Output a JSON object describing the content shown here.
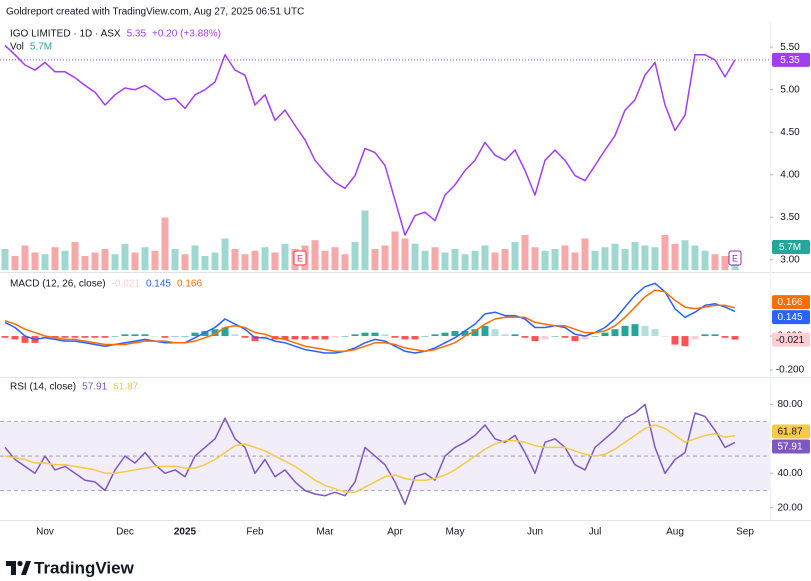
{
  "header": "Goldreport created with TradingView.com, Aug 27, 2025 06:51 UTC",
  "footer": "TradingView",
  "chart_data": [
    {
      "type": "line",
      "title": "IGO LIMITED · 1D · ASX",
      "change": "+0.20 (+3.88%)",
      "ylim": [
        2.88,
        5.76
      ],
      "yticks": [
        {
          "value": 5.5,
          "label": "5.50"
        },
        {
          "value": 5,
          "label": "5.00"
        },
        {
          "value": 4.5,
          "label": "4.50"
        },
        {
          "value": 4,
          "label": "4.00"
        },
        {
          "value": 3.5,
          "label": "3.50"
        },
        {
          "value": 3,
          "label": "3.00"
        }
      ],
      "y2lim": [
        0,
        140
      ],
      "last_line": true,
      "events": [
        {
          "x": 29.5,
          "label": "E",
          "color": "#f23645"
        },
        {
          "x": 73,
          "label": "E",
          "color": "#9c27b0"
        }
      ],
      "series": [
        {
          "type": "line",
          "color": "#a23ef2",
          "values": [
            5.52,
            5.41,
            5.29,
            5.23,
            5.32,
            5.21,
            5.21,
            5.14,
            5.05,
            4.97,
            4.82,
            4.94,
            5.02,
            5.0,
            5.05,
            4.97,
            4.88,
            4.9,
            4.78,
            4.94,
            5.0,
            5.09,
            5.41,
            5.23,
            5.17,
            4.82,
            4.94,
            4.64,
            4.76,
            4.58,
            4.41,
            4.17,
            4.03,
            3.91,
            3.84,
            3.99,
            4.31,
            4.26,
            4.11,
            3.7,
            3.29,
            3.52,
            3.56,
            3.46,
            3.76,
            3.88,
            4.05,
            4.17,
            4.38,
            4.23,
            4.17,
            4.29,
            4.05,
            3.76,
            4.17,
            4.29,
            4.17,
            3.99,
            3.93,
            4.11,
            4.29,
            4.46,
            4.76,
            4.88,
            5.17,
            5.32,
            4.82,
            4.52,
            4.7,
            5.41,
            5.41,
            5.35,
            5.15,
            5.35,
            null
          ]
        },
        {
          "type": "bar",
          "name": "Vol",
          "axis": "y2",
          "color": "#26a69a",
          "up_color": "#9fd8d1",
          "down_color": "#f5a9a9",
          "values": [
            12,
            8,
            14,
            10,
            9,
            13,
            11,
            16,
            8,
            10,
            12,
            9,
            15,
            10,
            13,
            11,
            30,
            12,
            9,
            14,
            8,
            10,
            18,
            12,
            9,
            11,
            13,
            10,
            15,
            12,
            14,
            17,
            11,
            13,
            9,
            16,
            34,
            12,
            14,
            22,
            18,
            15,
            11,
            13,
            10,
            12,
            9,
            11,
            14,
            10,
            12,
            16,
            20,
            13,
            11,
            12,
            14,
            10,
            18,
            11,
            13,
            15,
            12,
            16,
            14,
            13,
            20,
            15,
            17,
            14,
            11,
            9,
            8,
            5.7,
            null
          ],
          "value_labels": [
            null,
            null,
            null,
            null,
            null,
            null,
            null,
            null,
            null,
            null,
            null,
            null,
            null,
            null,
            null,
            null,
            null,
            null,
            null,
            null,
            null,
            null,
            null,
            null,
            null,
            null,
            null,
            null,
            null,
            null,
            null,
            null,
            null,
            null,
            null,
            null,
            null,
            null,
            null,
            null,
            null,
            null,
            null,
            null,
            null,
            null,
            null,
            null,
            null,
            null,
            null,
            null,
            null,
            null,
            null,
            null,
            null,
            null,
            null,
            null,
            null,
            null,
            null,
            null,
            null,
            null,
            null,
            null,
            null,
            null,
            null,
            null,
            null,
            "5.7M",
            null
          ]
        }
      ]
    },
    {
      "type": "line",
      "title": "MACD (12, 26, close)",
      "ylim": [
        -0.235,
        0.359
      ],
      "yticks": [
        {
          "value": 0,
          "label": "0.000"
        },
        {
          "value": -0.2,
          "label": "-0.200"
        }
      ],
      "series": [
        {
          "type": "bar",
          "color": "#ffcdd2",
          "colors": [
            "#26a69a",
            "#b2dfdb",
            "#ffcdd2",
            "#ff5252"
          ],
          "values": [
            -0.01,
            -0.02,
            -0.04,
            -0.04,
            -0.01,
            -0.01,
            -0.01,
            -0.01,
            -0.01,
            -0.01,
            -0.01,
            0,
            0.01,
            0.01,
            0.01,
            0,
            -0.01,
            0,
            0,
            0.02,
            0.03,
            0.04,
            0.05,
            0.01,
            -0.01,
            -0.03,
            -0.02,
            -0.02,
            -0.02,
            -0.02,
            -0.02,
            -0.02,
            -0.02,
            -0.01,
            0,
            0.01,
            0.02,
            0.02,
            0.01,
            -0.01,
            -0.02,
            -0.02,
            0,
            0.01,
            0.02,
            0.03,
            0.03,
            0.04,
            0.06,
            0.04,
            0.01,
            0.01,
            -0.01,
            -0.03,
            -0.02,
            0,
            -0.01,
            -0.03,
            -0.02,
            0,
            0.02,
            0.04,
            0.06,
            0.07,
            0.06,
            0.04,
            0,
            -0.05,
            -0.06,
            -0.02,
            0.01,
            0.01,
            -0.01,
            -0.021,
            null
          ]
        },
        {
          "type": "line",
          "color": "#2962ff",
          "values": [
            0.08,
            0.05,
            0,
            -0.02,
            -0.01,
            -0.02,
            -0.03,
            -0.03,
            -0.04,
            -0.05,
            -0.06,
            -0.05,
            -0.04,
            -0.03,
            -0.02,
            -0.03,
            -0.04,
            -0.04,
            -0.04,
            -0.01,
            0.02,
            0.05,
            0.1,
            0.07,
            0.04,
            -0.01,
            -0.01,
            -0.03,
            -0.04,
            -0.06,
            -0.08,
            -0.09,
            -0.1,
            -0.1,
            -0.09,
            -0.07,
            -0.04,
            -0.02,
            -0.03,
            -0.06,
            -0.09,
            -0.1,
            -0.09,
            -0.07,
            -0.04,
            -0.01,
            0.03,
            0.07,
            0.13,
            0.14,
            0.12,
            0.12,
            0.1,
            0.05,
            0.05,
            0.06,
            0.05,
            0.01,
            0,
            0.02,
            0.05,
            0.1,
            0.17,
            0.24,
            0.29,
            0.31,
            0.26,
            0.16,
            0.11,
            0.14,
            0.18,
            0.19,
            0.17,
            0.145,
            null
          ]
        },
        {
          "type": "line",
          "color": "#ff6d00",
          "values": [
            0.09,
            0.07,
            0.04,
            0.02,
            0,
            -0.01,
            -0.02,
            -0.02,
            -0.03,
            -0.04,
            -0.05,
            -0.05,
            -0.05,
            -0.04,
            -0.03,
            -0.03,
            -0.03,
            -0.04,
            -0.04,
            -0.03,
            -0.01,
            0.01,
            0.05,
            0.06,
            0.05,
            0.02,
            0.01,
            -0.01,
            -0.02,
            -0.04,
            -0.06,
            -0.07,
            -0.08,
            -0.09,
            -0.09,
            -0.08,
            -0.06,
            -0.04,
            -0.04,
            -0.05,
            -0.07,
            -0.08,
            -0.09,
            -0.08,
            -0.06,
            -0.04,
            0,
            0.03,
            0.07,
            0.1,
            0.11,
            0.11,
            0.11,
            0.08,
            0.07,
            0.06,
            0.06,
            0.04,
            0.02,
            0.02,
            0.03,
            0.06,
            0.11,
            0.17,
            0.23,
            0.27,
            0.26,
            0.21,
            0.17,
            0.16,
            0.17,
            0.18,
            0.18,
            0.166,
            null
          ]
        }
      ]
    },
    {
      "type": "line",
      "title": "RSI (14, close)",
      "ylim": [
        12.9,
        95.3
      ],
      "yticks": [
        {
          "value": 80,
          "label": "80.00"
        },
        {
          "value": 40,
          "label": "40.00"
        },
        {
          "value": 20,
          "label": "20.00"
        }
      ],
      "band": [
        30,
        50,
        70
      ],
      "band_color": "#7e57c2",
      "categories": [
        null,
        null,
        null,
        null,
        "Nov",
        null,
        null,
        null,
        null,
        null,
        null,
        null,
        "Dec",
        null,
        null,
        null,
        null,
        null,
        "2025",
        null,
        null,
        null,
        null,
        null,
        null,
        "Feb",
        null,
        null,
        null,
        null,
        null,
        null,
        "Mar",
        null,
        null,
        null,
        null,
        null,
        null,
        "Apr",
        null,
        null,
        null,
        null,
        null,
        "May",
        null,
        null,
        null,
        null,
        null,
        null,
        null,
        "Jun",
        null,
        null,
        null,
        null,
        null,
        "Jul",
        null,
        null,
        null,
        null,
        null,
        null,
        null,
        "Aug",
        null,
        null,
        null,
        null,
        null,
        null,
        "Sep"
      ],
      "series": [
        {
          "type": "line",
          "color": "#7e57c2",
          "values": [
            55,
            48,
            44,
            40,
            50,
            42,
            44,
            40,
            36,
            35,
            30,
            42,
            50,
            46,
            52,
            45,
            40,
            42,
            38,
            50,
            55,
            60,
            72,
            60,
            55,
            40,
            48,
            38,
            42,
            35,
            30,
            28,
            27,
            29,
            27,
            35,
            55,
            50,
            45,
            35,
            22,
            38,
            40,
            36,
            50,
            55,
            58,
            62,
            68,
            60,
            58,
            62,
            52,
            40,
            58,
            60,
            55,
            45,
            42,
            55,
            60,
            65,
            72,
            75,
            80,
            55,
            40,
            48,
            52,
            75,
            73,
            65,
            55,
            57.91,
            null
          ]
        },
        {
          "type": "line",
          "color": "#f7c948",
          "values": [
            50,
            49,
            48,
            46,
            46,
            45,
            45,
            44,
            43,
            42,
            40,
            40,
            41,
            42,
            43,
            44,
            44,
            44,
            43,
            43,
            45,
            48,
            52,
            56,
            57,
            55,
            53,
            50,
            47,
            44,
            40,
            36,
            33,
            31,
            29,
            29,
            32,
            35,
            38,
            39,
            37,
            36,
            36,
            37,
            39,
            42,
            46,
            50,
            54,
            57,
            59,
            59,
            58,
            56,
            55,
            55,
            55,
            53,
            51,
            50,
            51,
            54,
            58,
            62,
            66,
            68,
            66,
            62,
            58,
            60,
            62,
            63,
            61,
            61.87,
            null
          ]
        }
      ]
    }
  ]
}
